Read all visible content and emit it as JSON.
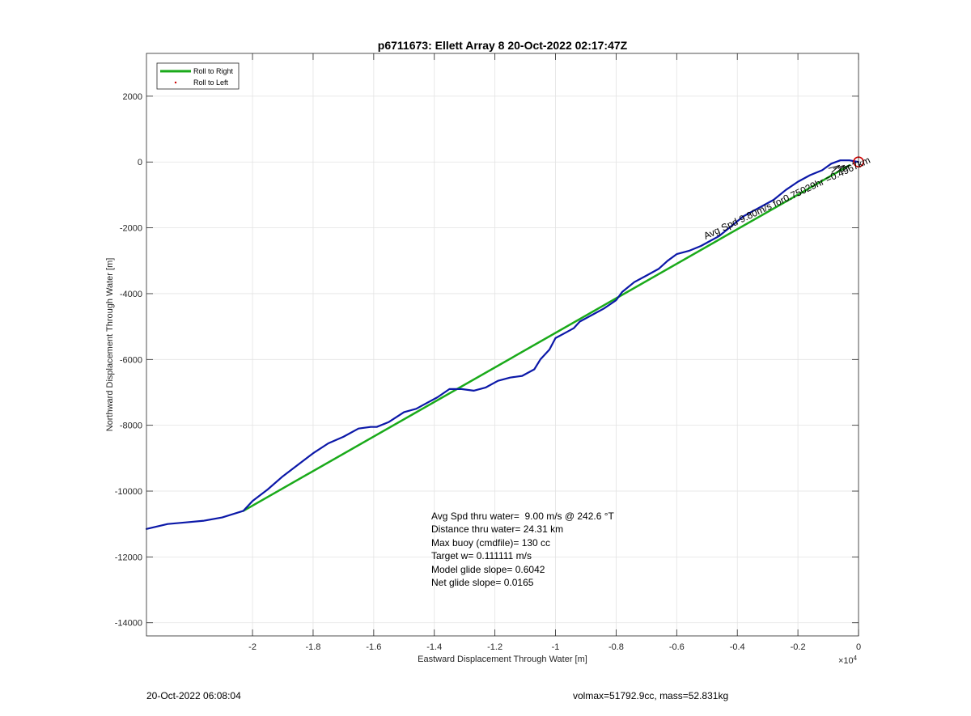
{
  "chart_data": {
    "type": "line",
    "title": "p6711673: Ellett Array 8 20-Oct-2022 02:17:47Z",
    "xlabel": "Eastward Displacement Through Water [m]",
    "ylabel": "Northward Displacement Through Water [m]",
    "x_exponent_label": "×10",
    "x_exponent_power": "4",
    "xlim": [
      -23500,
      0
    ],
    "ylim": [
      -14400,
      3300
    ],
    "grid": true,
    "x_ticks": [
      -20000,
      -18000,
      -16000,
      -14000,
      -12000,
      -10000,
      -8000,
      -6000,
      -4000,
      -2000,
      0
    ],
    "x_tick_labels": [
      "-2",
      "-1.8",
      "-1.6",
      "-1.4",
      "-1.2",
      "-1",
      "-0.8",
      "-0.6",
      "-0.4",
      "-0.2",
      "0"
    ],
    "y_ticks": [
      2000,
      0,
      -2000,
      -4000,
      -6000,
      -8000,
      -10000,
      -12000,
      -14000
    ],
    "y_tick_labels": [
      "2000",
      "0",
      "-2000",
      "-4000",
      "-6000",
      "-8000",
      "-10000",
      "-12000",
      "-14000"
    ],
    "legend": {
      "placement": "top-left",
      "entries": [
        "Roll to Right",
        "Roll to Left"
      ]
    },
    "series": [
      {
        "name": "Roll to Right",
        "color": "#1aaa1a",
        "x": [
          -20300,
          -300
        ],
        "y": [
          -10600,
          -100
        ]
      },
      {
        "color": "#0b18a8",
        "x": [
          -23500,
          -22800,
          -22200,
          -21600,
          -21000,
          -20300,
          -20000,
          -19500,
          -19000,
          -18500,
          -18000,
          -17500,
          -17000,
          -16500,
          -16100,
          -15900,
          -15500,
          -15000,
          -14600,
          -14300,
          -13900,
          -13500,
          -13100,
          -12700,
          -12300,
          -11900,
          -11500,
          -11100,
          -10700,
          -10500,
          -10200,
          -10000,
          -9700,
          -9400,
          -9200,
          -8800,
          -8400,
          -8000,
          -7800,
          -7400,
          -7000,
          -6600,
          -6300,
          -6000,
          -5600,
          -5200,
          -4900,
          -4600,
          -4200,
          -3800,
          -3400,
          -3100,
          -2800,
          -2400,
          -2000,
          -1600,
          -1200,
          -900,
          -600,
          -300,
          0
        ],
        "y": [
          -11150,
          -11000,
          -10950,
          -10900,
          -10800,
          -10600,
          -10300,
          -9950,
          -9550,
          -9200,
          -8850,
          -8550,
          -8350,
          -8100,
          -8050,
          -8050,
          -7900,
          -7600,
          -7500,
          -7350,
          -7150,
          -6900,
          -6900,
          -6950,
          -6850,
          -6650,
          -6550,
          -6500,
          -6300,
          -6000,
          -5700,
          -5350,
          -5200,
          -5050,
          -4850,
          -4650,
          -4450,
          -4200,
          -3950,
          -3650,
          -3450,
          -3250,
          -3000,
          -2800,
          -2700,
          -2550,
          -2400,
          -2250,
          -1950,
          -1650,
          -1450,
          -1300,
          -1150,
          -850,
          -600,
          -400,
          -250,
          -50,
          50,
          50,
          0
        ]
      }
    ],
    "start_marker": {
      "x": 0,
      "y": 0,
      "color": "#cc0000"
    },
    "rotated_annotation": "Avg Spd 9.80m/s for0.75029hr =0.4967km",
    "annotations": [
      "Avg Spd thru water=  9.00 m/s @ 242.6 °T",
      "Distance thru water= 24.31 km",
      "Max buoy (cmdfile)= 130 cc",
      "Target w= 0.111111 m/s",
      "Model glide slope= 0.6042",
      "Net glide slope= 0.0165"
    ]
  },
  "footer": {
    "left": "20-Oct-2022 06:08:04",
    "right": "volmax=51792.9cc, mass=52.831kg"
  }
}
